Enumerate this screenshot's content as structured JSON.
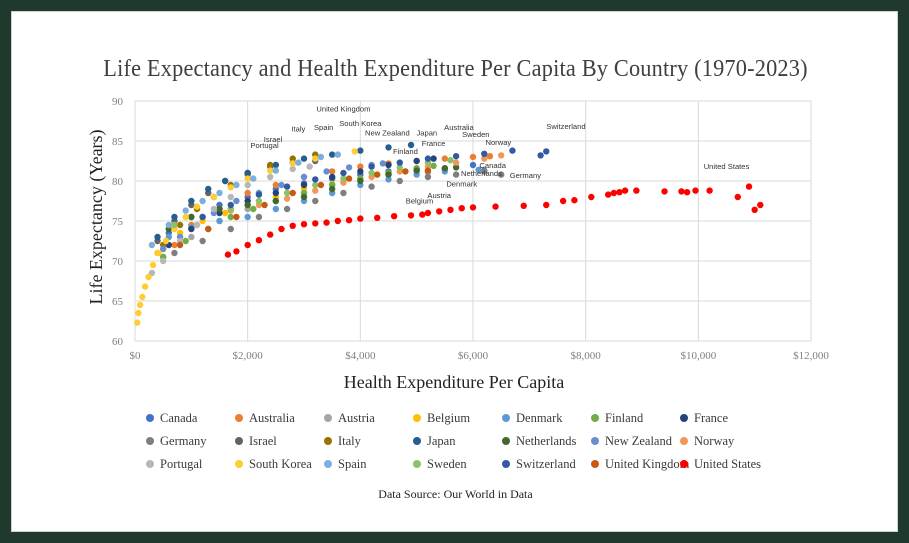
{
  "chart_data": {
    "type": "scatter",
    "title": "Life Expectancy and Health Expenditure Per Capita By Country (1970-2023)",
    "xlabel": "Health Expenditure Per Capita",
    "ylabel": "Life Expectancy (Years)",
    "source": "Data Source: Our World in Data",
    "xlim": [
      0,
      12000
    ],
    "ylim": [
      60,
      90
    ],
    "xticks": [
      0,
      2000,
      4000,
      6000,
      8000,
      10000,
      12000
    ],
    "xtick_labels": [
      "$0",
      "$2,000",
      "$4,000",
      "$6,000",
      "$8,000",
      "$10,000",
      "$12,000"
    ],
    "yticks": [
      60,
      65,
      70,
      75,
      80,
      85,
      90
    ],
    "ytick_labels": [
      "60",
      "65",
      "70",
      "75",
      "80",
      "85",
      "90"
    ],
    "grid": true,
    "legend_position": "bottom",
    "series": [
      {
        "name": "Canada",
        "color": "#4472c4",
        "x": [
          600,
          1000,
          1500,
          2000,
          2500,
          3000,
          3500,
          4000,
          4500,
          5000,
          5500,
          6000,
          6200
        ],
        "y": [
          73.5,
          75.5,
          77,
          78,
          79,
          79.7,
          80.3,
          80.8,
          81.2,
          81.5,
          81.5,
          82,
          81.3
        ]
      },
      {
        "name": "Australia",
        "color": "#ed7d31",
        "x": [
          700,
          1000,
          1500,
          2000,
          2500,
          3000,
          3500,
          4000,
          4500,
          5000,
          5500,
          6000,
          6300
        ],
        "y": [
          72,
          74.5,
          76.5,
          78.5,
          79.5,
          80.5,
          81.2,
          81.8,
          82.2,
          82.5,
          82.8,
          83,
          83.1
        ]
      },
      {
        "name": "Austria",
        "color": "#a5a5a5",
        "x": [
          500,
          1000,
          1500,
          2000,
          2500,
          3000,
          3500,
          4000,
          4500,
          5000,
          5200
        ],
        "y": [
          70.5,
          73,
          75,
          76.5,
          77.5,
          78.5,
          79.5,
          80.3,
          80.8,
          81.3,
          81.1
        ]
      },
      {
        "name": "Belgium",
        "color": "#ffc000",
        "x": [
          400,
          800,
          1200,
          1600,
          2000,
          2500,
          3000,
          3500,
          4000,
          4500,
          4800
        ],
        "y": [
          71,
          73.5,
          75,
          76,
          77,
          78,
          79,
          79.6,
          80.3,
          80.9,
          81.2
        ]
      },
      {
        "name": "Denmark",
        "color": "#5b9bd5",
        "x": [
          600,
          1000,
          1500,
          2000,
          2500,
          3000,
          3500,
          4000,
          4500,
          5000,
          5500,
          6100
        ],
        "y": [
          73,
          74.2,
          75,
          75.5,
          76.5,
          77.5,
          78.5,
          79.5,
          80.2,
          80.8,
          81.2,
          81.4
        ]
      },
      {
        "name": "Finland",
        "color": "#70ad47",
        "x": [
          500,
          900,
          1300,
          1700,
          2100,
          2500,
          3000,
          3500,
          4000,
          4500,
          5000,
          5300
        ],
        "y": [
          70.5,
          72.5,
          74,
          75.5,
          76.5,
          77.5,
          78.5,
          79.5,
          80.3,
          81,
          81.6,
          81.9
        ]
      },
      {
        "name": "France",
        "color": "#264478",
        "x": [
          600,
          1000,
          1500,
          2000,
          2500,
          3000,
          3500,
          4000,
          4500,
          5000,
          5300
        ],
        "y": [
          72,
          74,
          76,
          77.5,
          78.5,
          79.5,
          80.5,
          81.2,
          82,
          82.5,
          82.8
        ]
      },
      {
        "name": "Germany",
        "color": "#7f7f7f",
        "x": [
          700,
          1200,
          1700,
          2200,
          2700,
          3200,
          3700,
          4200,
          4700,
          5200,
          5700,
          6200,
          6500
        ],
        "y": [
          71,
          72.5,
          74,
          75.5,
          76.5,
          77.5,
          78.5,
          79.3,
          80,
          80.5,
          80.8,
          81.2,
          80.8
        ]
      },
      {
        "name": "Israel",
        "color": "#636363",
        "x": [
          400,
          700,
          1000,
          1300,
          1600,
          2000,
          2400,
          2800,
          3200
        ],
        "y": [
          72.5,
          75,
          77,
          78.5,
          80,
          81,
          81.8,
          82.3,
          82.5
        ]
      },
      {
        "name": "Italy",
        "color": "#997300",
        "x": [
          500,
          800,
          1100,
          1400,
          1700,
          2000,
          2400,
          2800,
          3200
        ],
        "y": [
          72,
          74.5,
          76.5,
          78,
          79.5,
          80.8,
          82,
          82.8,
          83.3
        ]
      },
      {
        "name": "Japan",
        "color": "#255e91",
        "x": [
          400,
          700,
          1000,
          1300,
          1600,
          2000,
          2500,
          3000,
          3500,
          4000,
          4500,
          4900
        ],
        "y": [
          73,
          75.5,
          77.5,
          79,
          80,
          81,
          82,
          82.8,
          83.3,
          83.8,
          84.2,
          84.5
        ]
      },
      {
        "name": "Netherlands",
        "color": "#43682b",
        "x": [
          600,
          1000,
          1500,
          2000,
          2500,
          3000,
          3500,
          4000,
          4500,
          5000,
          5500,
          5700
        ],
        "y": [
          74,
          75.5,
          76.5,
          77,
          77.5,
          78,
          79,
          80,
          80.8,
          81.3,
          81.6,
          81.7
        ]
      },
      {
        "name": "New Zealand",
        "color": "#698ed0",
        "x": [
          500,
          800,
          1100,
          1400,
          1800,
          2200,
          2600,
          3000,
          3400,
          3800,
          4200,
          4400
        ],
        "y": [
          71.5,
          73,
          74.5,
          76,
          77.5,
          78.5,
          79.5,
          80.5,
          81.2,
          81.7,
          82,
          82.2
        ]
      },
      {
        "name": "Norway",
        "color": "#f1975a",
        "x": [
          700,
          1200,
          1700,
          2200,
          2700,
          3200,
          3700,
          4200,
          4700,
          5200,
          5700,
          6200,
          6500
        ],
        "y": [
          74.5,
          75.5,
          76.3,
          77,
          77.8,
          78.8,
          79.8,
          80.5,
          81.2,
          81.8,
          82.3,
          82.8,
          83.2
        ]
      },
      {
        "name": "Portugal",
        "color": "#b7b7b7",
        "x": [
          300,
          500,
          800,
          1100,
          1400,
          1700,
          2000,
          2400,
          2800,
          3100
        ],
        "y": [
          68.5,
          70,
          72.5,
          74.5,
          76.5,
          78,
          79.5,
          80.5,
          81.5,
          81.8
        ]
      },
      {
        "name": "South Korea",
        "color": "#ffcd33",
        "x": [
          40,
          60,
          90,
          130,
          180,
          240,
          320,
          420,
          550,
          700,
          900,
          1100,
          1400,
          1700,
          2000,
          2400,
          2800,
          3200,
          3600,
          3900
        ],
        "y": [
          62.3,
          63.5,
          64.5,
          65.5,
          66.8,
          68,
          69.5,
          71,
          72.5,
          74,
          75.5,
          76.8,
          78,
          79.2,
          80.3,
          81.3,
          82.2,
          82.8,
          83.3,
          83.7
        ]
      },
      {
        "name": "Spain",
        "color": "#7cafdd",
        "x": [
          300,
          600,
          900,
          1200,
          1500,
          1800,
          2100,
          2500,
          2900,
          3300,
          3600
        ],
        "y": [
          72,
          74.5,
          76.3,
          77.5,
          78.5,
          79.5,
          80.3,
          81.3,
          82.3,
          83,
          83.3
        ]
      },
      {
        "name": "Sweden",
        "color": "#8cc168",
        "x": [
          700,
          1200,
          1700,
          2200,
          2700,
          3200,
          3700,
          4200,
          4700,
          5200,
          5600
        ],
        "y": [
          74.5,
          75.5,
          76.5,
          77.5,
          78.5,
          79.5,
          80.3,
          81,
          81.7,
          82.3,
          82.6
        ]
      },
      {
        "name": "Switzerland",
        "color": "#335aa1",
        "x": [
          1200,
          1700,
          2200,
          2700,
          3200,
          3700,
          4200,
          4700,
          5200,
          5700,
          6200,
          6700,
          7200,
          7300
        ],
        "y": [
          75.5,
          77,
          78.3,
          79.3,
          80.2,
          81,
          81.8,
          82.3,
          82.8,
          83.1,
          83.4,
          83.8,
          83.2,
          83.7
        ]
      },
      {
        "name": "United Kingdom",
        "color": "#c55a11",
        "x": [
          800,
          1300,
          1800,
          2300,
          2800,
          3300,
          3800,
          4300,
          4800,
          5200
        ],
        "y": [
          72,
          74,
          75.5,
          77,
          78.5,
          79.5,
          80.3,
          80.8,
          81.2,
          81.3
        ]
      },
      {
        "name": "United States",
        "color": "#ff0000",
        "x": [
          1650,
          1800,
          2000,
          2200,
          2400,
          2600,
          2800,
          3000,
          3200,
          3400,
          3600,
          3800,
          4000,
          4300,
          4600,
          4900,
          5100,
          5200,
          5400,
          5600,
          5800,
          6000,
          6400,
          6900,
          7300,
          7600,
          7800,
          8100,
          8400,
          8500,
          8600,
          8700,
          8900,
          9400,
          9700,
          9800,
          9950,
          10200,
          10700,
          10900,
          11000,
          11100
        ],
        "y": [
          70.8,
          71.2,
          72,
          72.6,
          73.3,
          74,
          74.4,
          74.6,
          74.7,
          74.8,
          75,
          75.1,
          75.3,
          75.4,
          75.6,
          75.7,
          75.8,
          76,
          76.2,
          76.4,
          76.6,
          76.7,
          76.8,
          76.9,
          77,
          77.5,
          77.6,
          78,
          78.3,
          78.5,
          78.6,
          78.8,
          78.8,
          78.7,
          78.7,
          78.6,
          78.8,
          78.8,
          78,
          79.3,
          76.4,
          77
        ]
      }
    ],
    "annotations": [
      {
        "text": "United Kingdom",
        "x": 3700,
        "y": 88.7,
        "anchor": "middle"
      },
      {
        "text": "South Korea",
        "x": 4000,
        "y": 86.9,
        "anchor": "middle"
      },
      {
        "text": "Spain",
        "x": 3350,
        "y": 86.4,
        "anchor": "middle"
      },
      {
        "text": "Italy",
        "x": 2900,
        "y": 86.2,
        "anchor": "middle"
      },
      {
        "text": "Israel",
        "x": 2450,
        "y": 84.9,
        "anchor": "middle"
      },
      {
        "text": "Portugal",
        "x": 2300,
        "y": 84.1,
        "anchor": "middle"
      },
      {
        "text": "New Zealand",
        "x": 4480,
        "y": 85.7,
        "anchor": "middle"
      },
      {
        "text": "Japan",
        "x": 5180,
        "y": 85.7,
        "anchor": "middle"
      },
      {
        "text": "Australia",
        "x": 5750,
        "y": 86.4,
        "anchor": "middle"
      },
      {
        "text": "Sweden",
        "x": 6050,
        "y": 85.5,
        "anchor": "middle"
      },
      {
        "text": "Switzerland",
        "x": 7650,
        "y": 86.5,
        "anchor": "middle"
      },
      {
        "text": "France",
        "x": 5300,
        "y": 84.4,
        "anchor": "middle"
      },
      {
        "text": "Finland",
        "x": 4800,
        "y": 83.4,
        "anchor": "middle"
      },
      {
        "text": "Norway",
        "x": 6450,
        "y": 84.5,
        "anchor": "middle"
      },
      {
        "text": "Canada",
        "x": 6350,
        "y": 81.6,
        "anchor": "middle"
      },
      {
        "text": "Netherlands",
        "x": 6150,
        "y": 80.6,
        "anchor": "middle"
      },
      {
        "text": "Germany",
        "x": 6930,
        "y": 80.4,
        "anchor": "middle"
      },
      {
        "text": "Denmark",
        "x": 5800,
        "y": 79.3,
        "anchor": "middle"
      },
      {
        "text": "Austria",
        "x": 5400,
        "y": 77.9,
        "anchor": "middle"
      },
      {
        "text": "Belgium",
        "x": 5050,
        "y": 77.2,
        "anchor": "middle"
      },
      {
        "text": "United States",
        "x": 10500,
        "y": 81.5,
        "anchor": "middle"
      }
    ]
  }
}
